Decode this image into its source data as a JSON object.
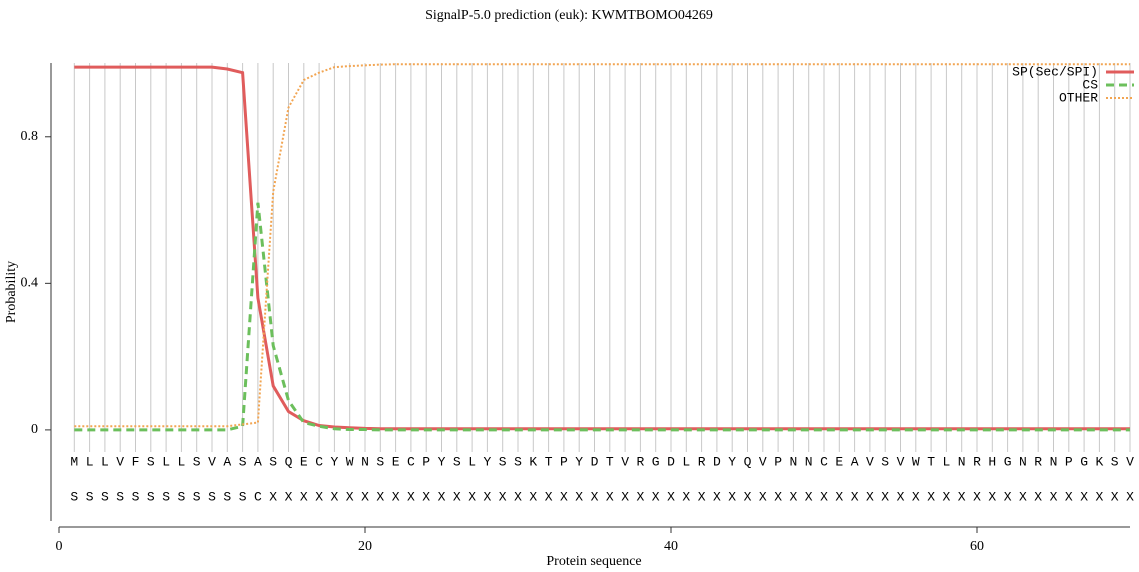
{
  "chart_data": {
    "type": "line",
    "title": "SignalP-5.0 prediction (euk):  KWMTBOMO04269",
    "xlabel": "Protein sequence",
    "ylabel": "Probability",
    "x": [
      1,
      2,
      3,
      4,
      5,
      6,
      7,
      8,
      9,
      10,
      11,
      12,
      13,
      14,
      15,
      16,
      17,
      18,
      19,
      20,
      21,
      22,
      23,
      24,
      25,
      26,
      27,
      28,
      29,
      30,
      31,
      32,
      33,
      34,
      35,
      36,
      37,
      38,
      39,
      40,
      41,
      42,
      43,
      44,
      45,
      46,
      47,
      48,
      49,
      50,
      51,
      52,
      53,
      54,
      55,
      56,
      57,
      58,
      59,
      60,
      61,
      62,
      63,
      64,
      65,
      66,
      67,
      68,
      69,
      70
    ],
    "sequence": [
      "M",
      "L",
      "L",
      "V",
      "F",
      "S",
      "L",
      "L",
      "S",
      "V",
      "A",
      "S",
      "A",
      "S",
      "Q",
      "E",
      "C",
      "Y",
      "W",
      "N",
      "S",
      "E",
      "C",
      "P",
      "Y",
      "S",
      "L",
      "Y",
      "S",
      "S",
      "K",
      "T",
      "P",
      "Y",
      "D",
      "T",
      "V",
      "R",
      "G",
      "D",
      "L",
      "R",
      "D",
      "Y",
      "Q",
      "V",
      "P",
      "N",
      "N",
      "C",
      "E",
      "A",
      "V",
      "S",
      "V",
      "W",
      "T",
      "L",
      "N",
      "R",
      "H",
      "G",
      "N",
      "R",
      "N",
      "P",
      "G",
      "K",
      "S",
      "V"
    ],
    "prediction": [
      "S",
      "S",
      "S",
      "S",
      "S",
      "S",
      "S",
      "S",
      "S",
      "S",
      "S",
      "S",
      "C",
      "X",
      "X",
      "X",
      "X",
      "X",
      "X",
      "X",
      "X",
      "X",
      "X",
      "X",
      "X",
      "X",
      "X",
      "X",
      "X",
      "X",
      "X",
      "X",
      "X",
      "X",
      "X",
      "X",
      "X",
      "X",
      "X",
      "X",
      "X",
      "X",
      "X",
      "X",
      "X",
      "X",
      "X",
      "X",
      "X",
      "X",
      "X",
      "X",
      "X",
      "X",
      "X",
      "X",
      "X",
      "X",
      "X",
      "X",
      "X",
      "X",
      "X",
      "X",
      "X",
      "X",
      "X",
      "X",
      "X",
      "X"
    ],
    "series": [
      {
        "name": "SP(Sec/SPI)",
        "color": "#e05c5c",
        "style": "solid",
        "values": [
          0.99,
          0.99,
          0.99,
          0.99,
          0.99,
          0.99,
          0.99,
          0.99,
          0.99,
          0.99,
          0.985,
          0.975,
          0.36,
          0.12,
          0.05,
          0.025,
          0.012,
          0.008,
          0.006,
          0.004,
          0.003,
          0.003,
          0.003,
          0.003,
          0.003,
          0.003,
          0.003,
          0.003,
          0.003,
          0.003,
          0.003,
          0.003,
          0.003,
          0.003,
          0.003,
          0.003,
          0.003,
          0.003,
          0.003,
          0.003,
          0.003,
          0.003,
          0.003,
          0.003,
          0.003,
          0.003,
          0.003,
          0.003,
          0.003,
          0.003,
          0.003,
          0.003,
          0.003,
          0.003,
          0.003,
          0.003,
          0.003,
          0.003,
          0.003,
          0.003,
          0.003,
          0.003,
          0.003,
          0.003,
          0.003,
          0.003,
          0.003,
          0.003,
          0.003,
          0.003
        ]
      },
      {
        "name": "CS",
        "color": "#6cbf5c",
        "style": "dashed",
        "values": [
          0,
          0,
          0,
          0,
          0,
          0,
          0,
          0,
          0,
          0,
          0,
          0.01,
          0.62,
          0.23,
          0.08,
          0.02,
          0.01,
          0.003,
          0.001,
          0.001,
          0,
          0,
          0,
          0,
          0,
          0,
          0,
          0,
          0,
          0,
          0,
          0,
          0,
          0,
          0,
          0,
          0,
          0,
          0,
          0,
          0,
          0,
          0,
          0,
          0,
          0,
          0,
          0,
          0,
          0,
          0,
          0,
          0,
          0,
          0,
          0,
          0,
          0,
          0,
          0,
          0,
          0,
          0,
          0,
          0,
          0,
          0,
          0,
          0,
          0
        ]
      },
      {
        "name": "OTHER",
        "color": "#f2a552",
        "style": "dotted",
        "values": [
          0.01,
          0.01,
          0.01,
          0.01,
          0.01,
          0.01,
          0.01,
          0.01,
          0.01,
          0.01,
          0.01,
          0.015,
          0.02,
          0.65,
          0.88,
          0.955,
          0.975,
          0.99,
          0.993,
          0.995,
          0.997,
          0.998,
          0.998,
          0.998,
          0.998,
          0.998,
          0.998,
          0.998,
          0.998,
          0.998,
          0.998,
          0.998,
          0.998,
          0.998,
          0.998,
          0.998,
          0.998,
          0.998,
          0.998,
          0.998,
          0.998,
          0.998,
          0.998,
          0.998,
          0.998,
          0.998,
          0.998,
          0.998,
          0.998,
          0.998,
          0.998,
          0.998,
          0.998,
          0.998,
          0.998,
          0.998,
          0.998,
          0.998,
          0.998,
          0.998,
          0.998,
          0.998,
          0.998,
          0.998,
          0.998,
          0.998,
          0.998,
          0.998,
          0.998,
          0.998
        ]
      }
    ],
    "xlim": [
      0,
      70
    ],
    "xticks": [
      0,
      20,
      40,
      60
    ],
    "ylim": [
      -0.25,
      1
    ],
    "yticks": [
      0,
      0.4,
      0.8
    ],
    "legend": "top-right"
  }
}
